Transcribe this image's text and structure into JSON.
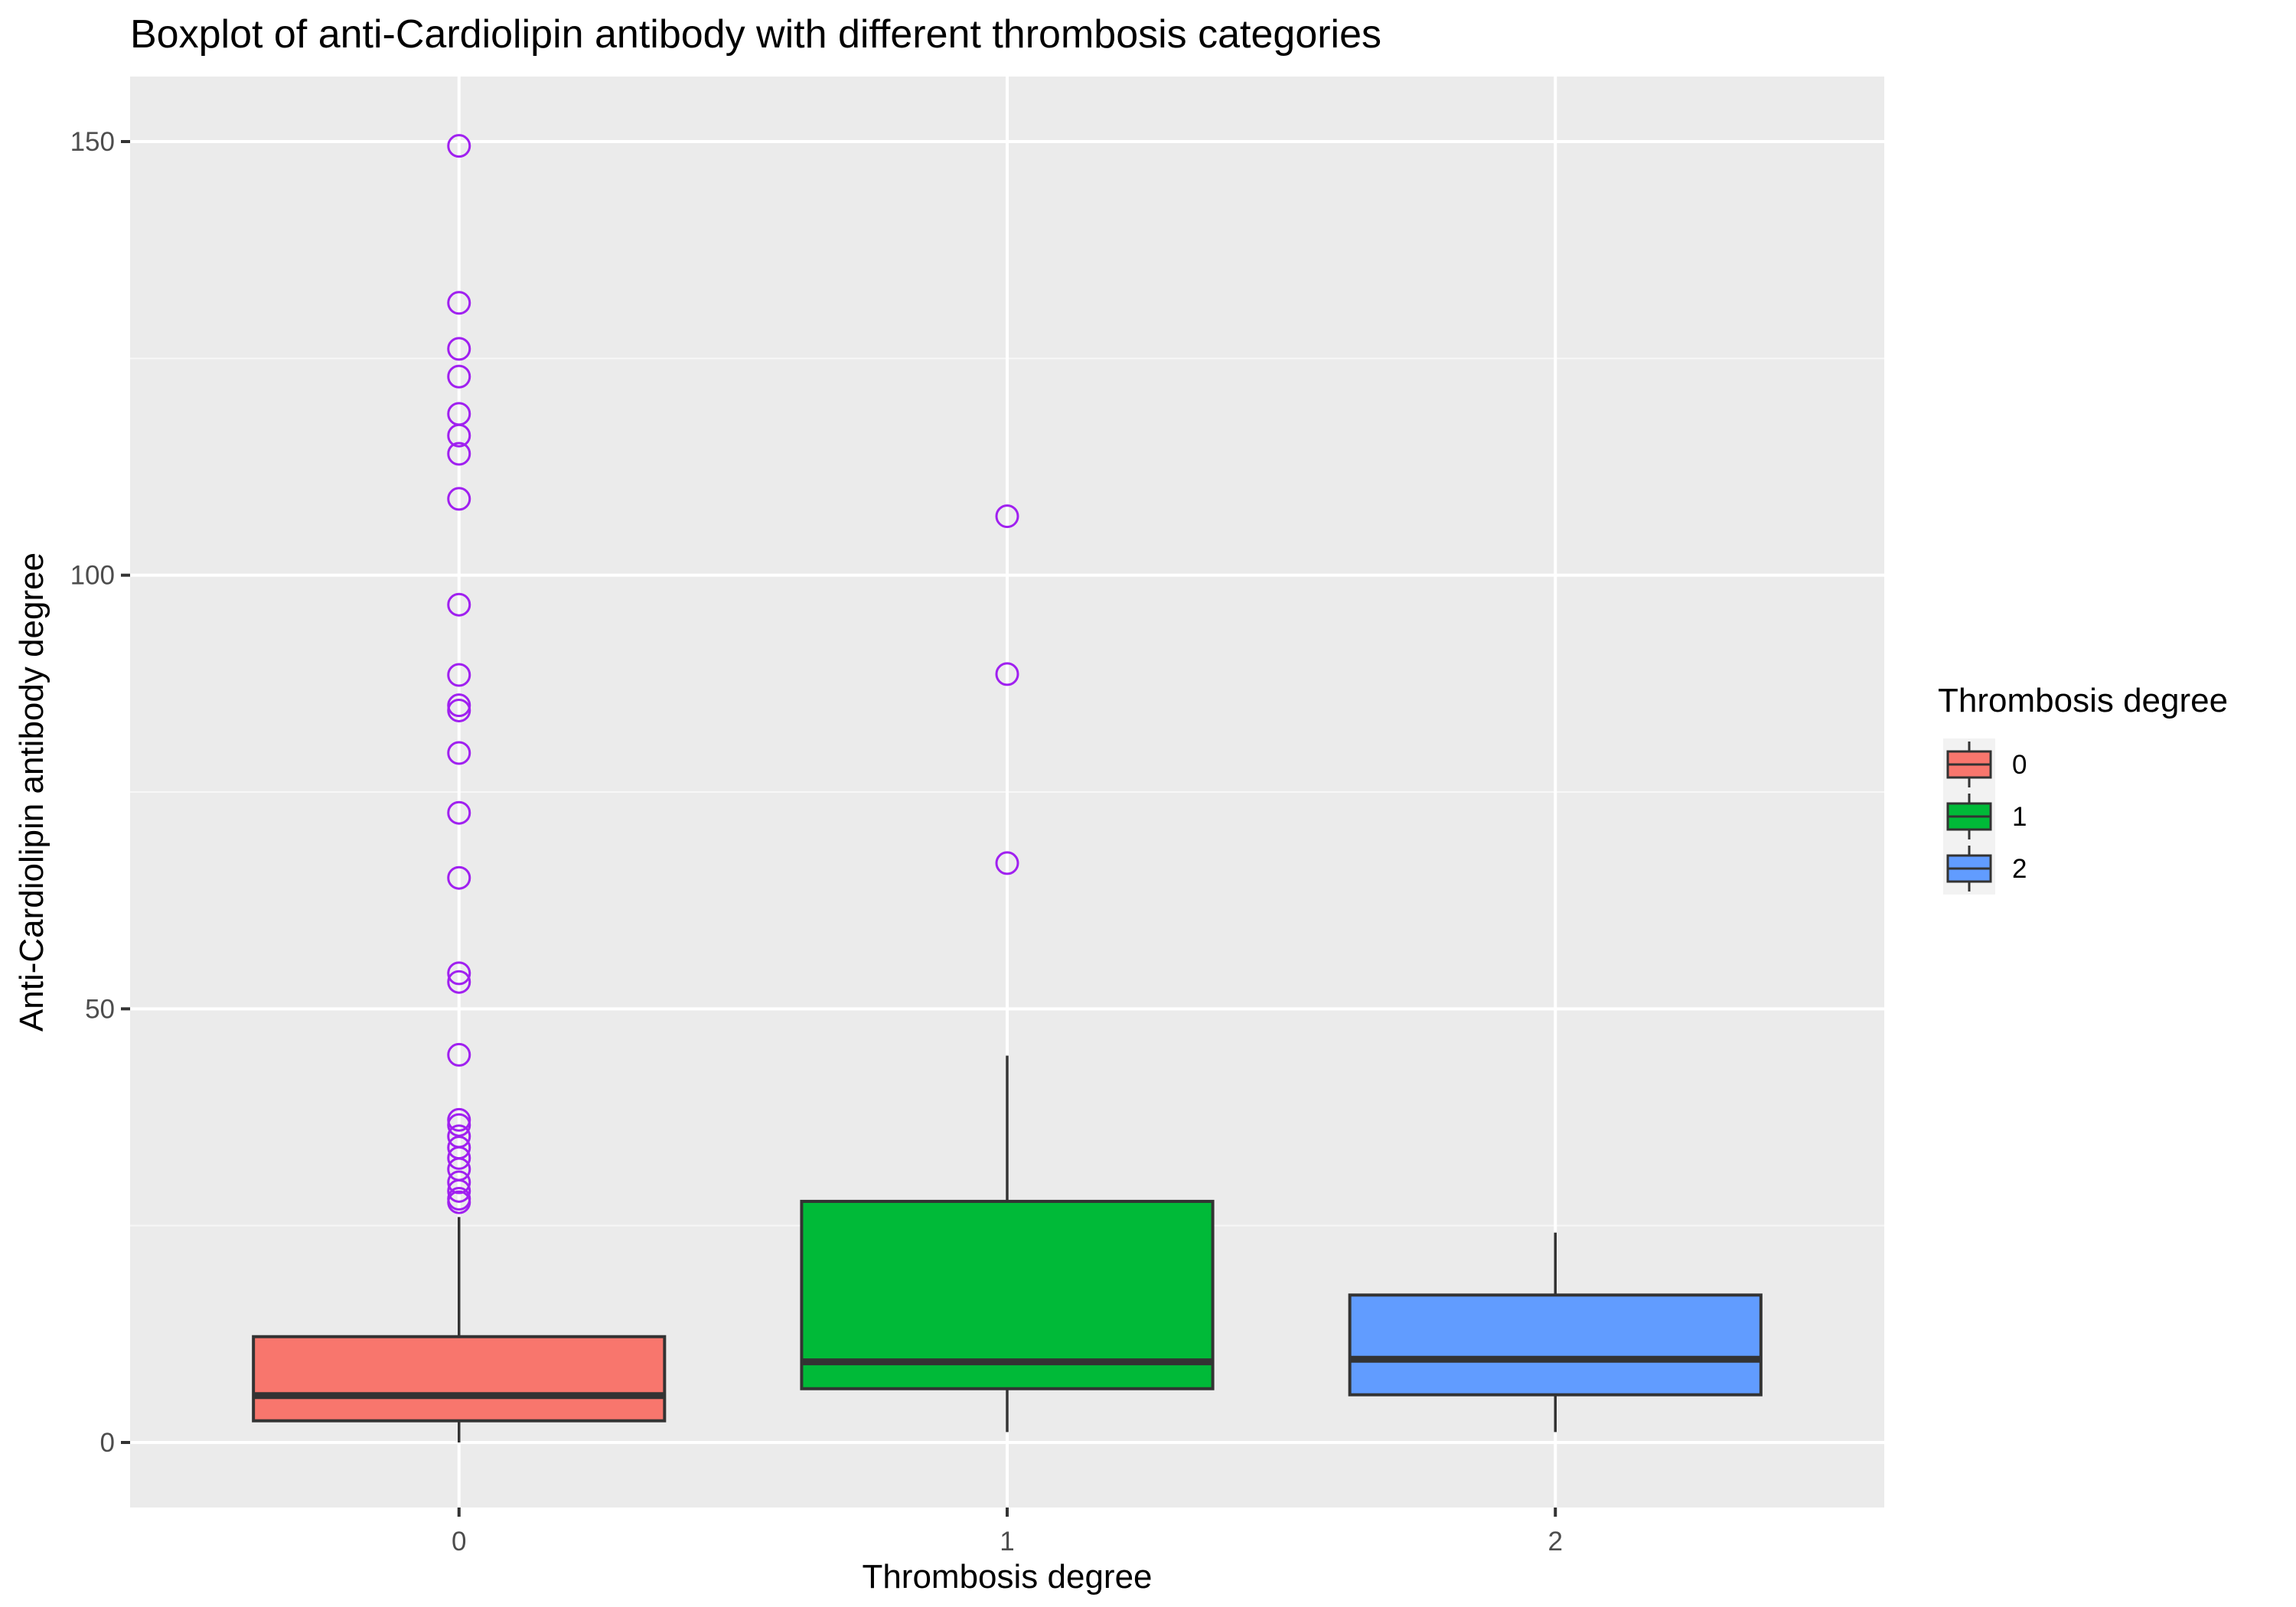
{
  "chart_data": {
    "type": "box",
    "title": "Boxplot of anti-Cardiolipin antibody with different thrombosis categories",
    "xlabel": "Thrombosis degree",
    "ylabel": "Anti-Cardiolipin antibody degree",
    "categories": [
      "0",
      "1",
      "2"
    ],
    "ylim": [
      -7.5,
      157.5
    ],
    "y_ticks": [
      0,
      50,
      100,
      150
    ],
    "grid": true,
    "legend": {
      "title": "Thrombosis degree",
      "position": "right"
    },
    "colors": {
      "panel_background": "#EBEBEB",
      "grid_major": "#FFFFFF",
      "grid_minor": "#F7F7F7",
      "box_outline": "#333333",
      "outlier": "#A020F0",
      "fills": [
        "#F8766D",
        "#00BA38",
        "#619CFF"
      ]
    },
    "boxes": [
      {
        "category": "0",
        "whisker_low": 0.0,
        "q1": 2.5,
        "median": 5.4,
        "q3": 12.2,
        "whisker_high": 26.0,
        "outliers": [
          149.5,
          131.4,
          126.1,
          122.9,
          118.6,
          116.1,
          114.0,
          108.8,
          96.6,
          88.5,
          85.0,
          84.4,
          79.5,
          72.6,
          65.1,
          54.1,
          53.1,
          44.7,
          37.2,
          36.6,
          35.3,
          34.0,
          32.8,
          31.5,
          30.0,
          29.0,
          28.1,
          27.7
        ]
      },
      {
        "category": "1",
        "whisker_low": 1.2,
        "q1": 6.2,
        "median": 9.3,
        "q3": 27.8,
        "whisker_high": 44.6,
        "outliers": [
          106.8,
          88.6,
          66.8
        ]
      },
      {
        "category": "2",
        "whisker_low": 1.2,
        "q1": 5.5,
        "median": 9.6,
        "q3": 17.0,
        "whisker_high": 24.2,
        "outliers": []
      }
    ]
  }
}
